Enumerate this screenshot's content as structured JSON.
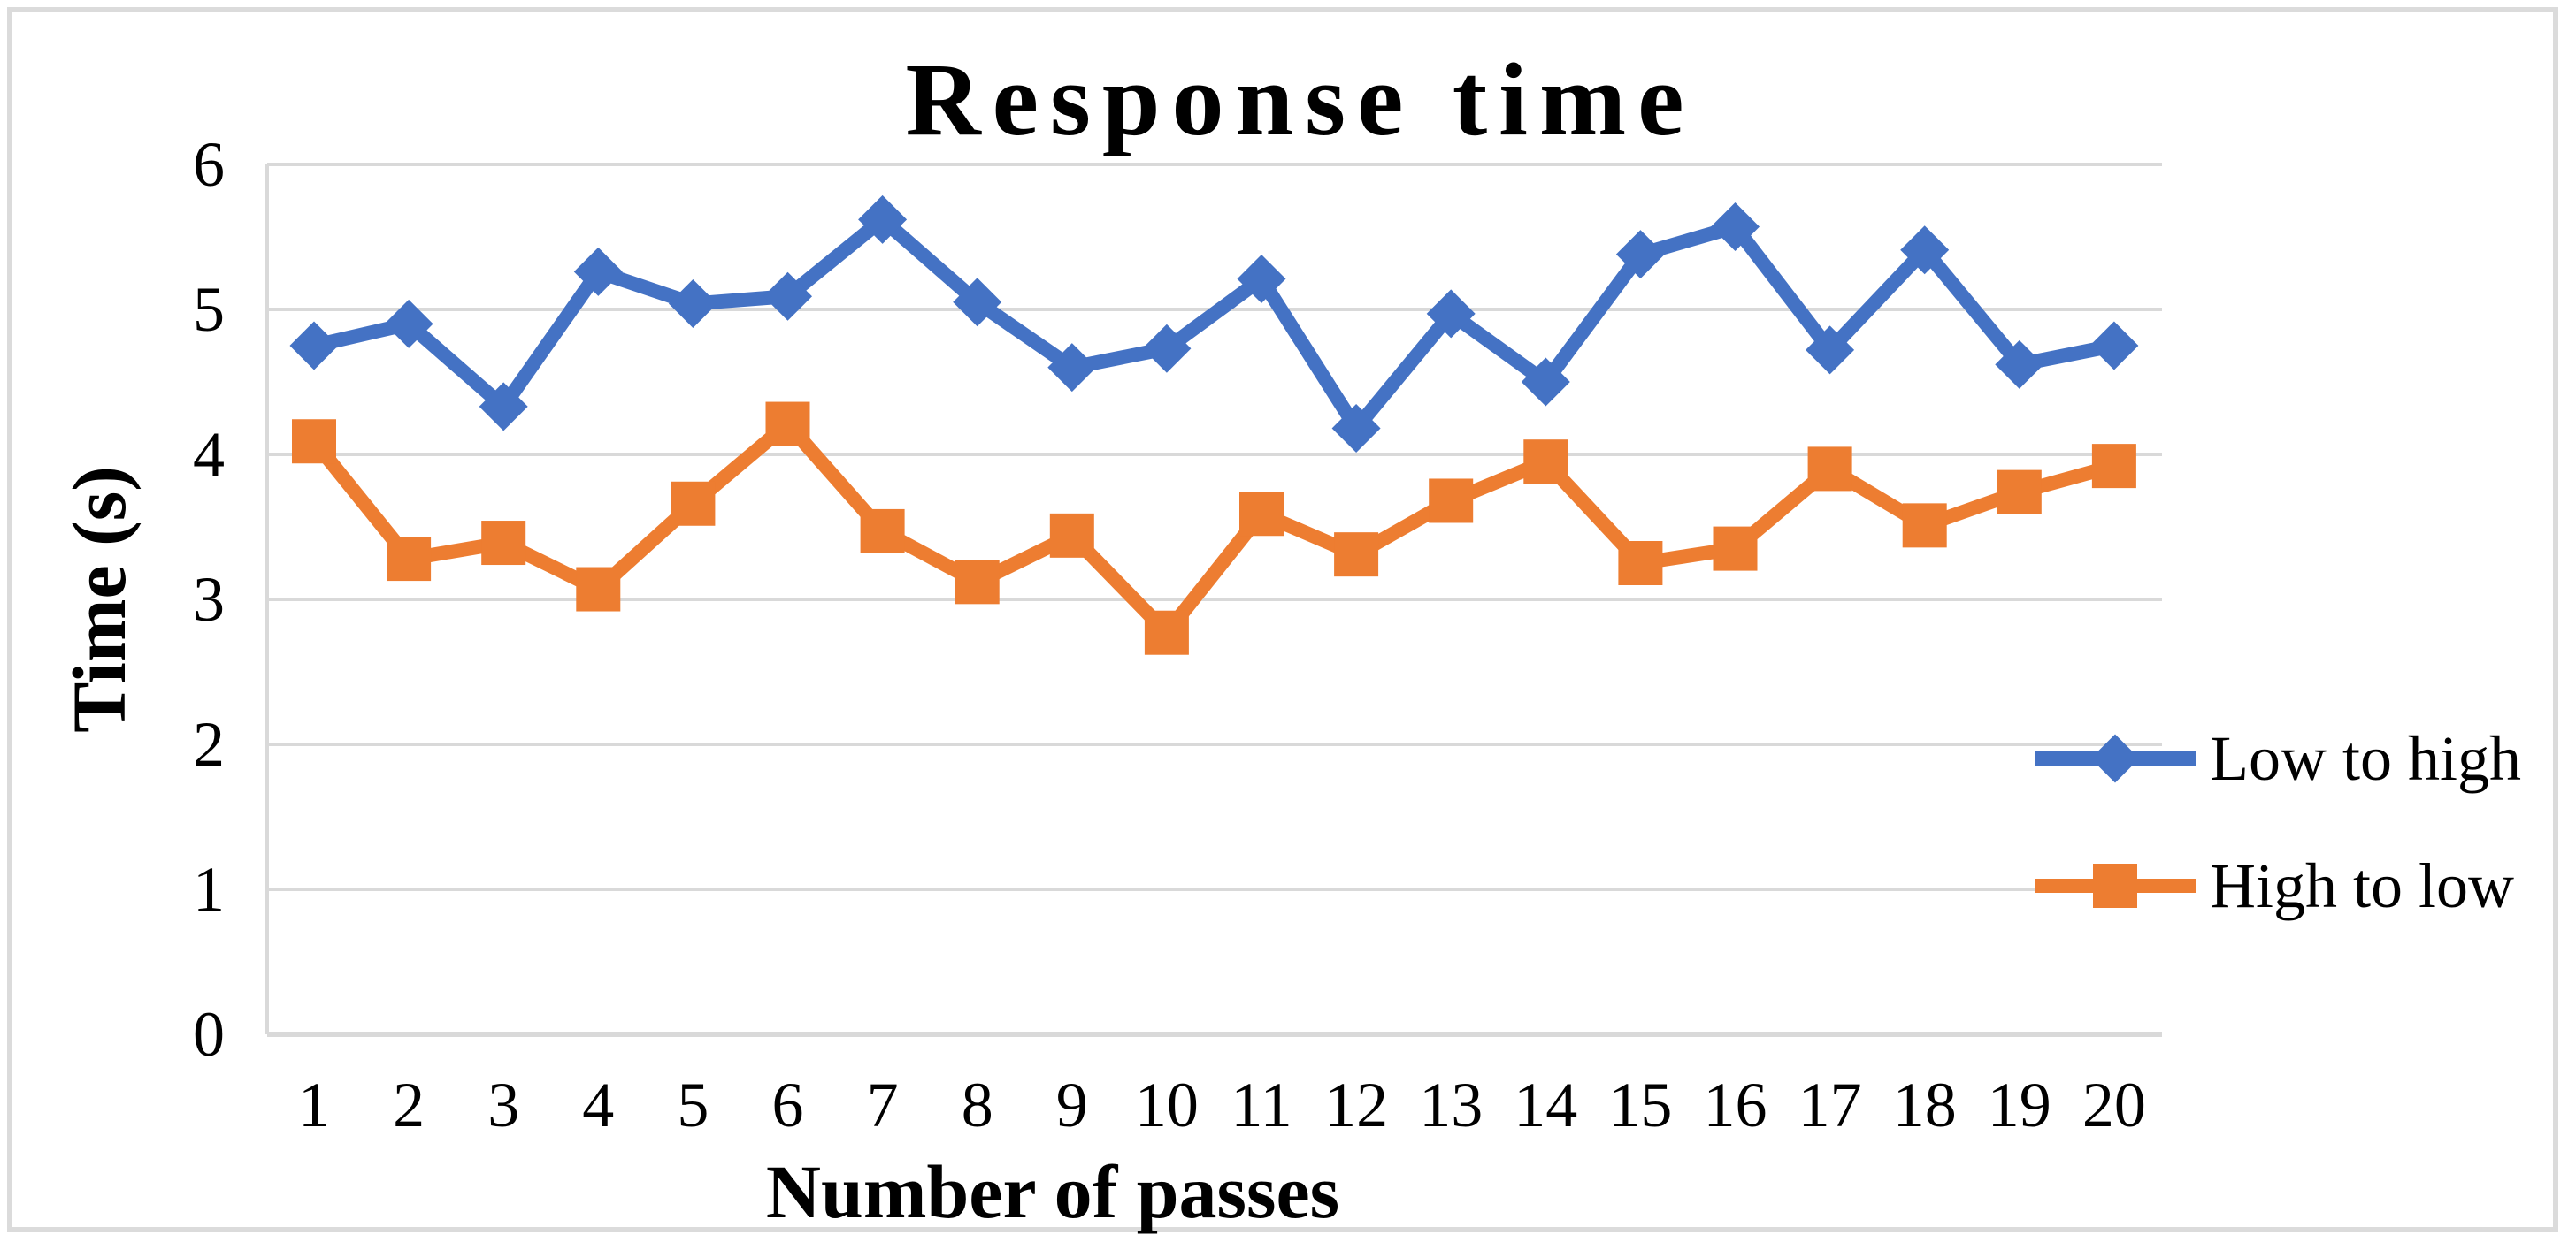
{
  "title": "Response time",
  "axes": {
    "x_label": "Number of passes",
    "y_label": "Time (s)",
    "x_ticks": [
      "1",
      "2",
      "3",
      "4",
      "5",
      "6",
      "7",
      "8",
      "9",
      "10",
      "11",
      "12",
      "13",
      "14",
      "15",
      "16",
      "17",
      "18",
      "19",
      "20"
    ],
    "y_ticks": [
      "0",
      "1",
      "2",
      "3",
      "4",
      "5",
      "6"
    ]
  },
  "legend": {
    "position": "right",
    "items": [
      {
        "label": "Low to high",
        "color": "#4472C4",
        "marker": "diamond"
      },
      {
        "label": "High to low",
        "color": "#ED7D31",
        "marker": "square"
      }
    ]
  },
  "colors": {
    "series_blue": "#4472C4",
    "series_orange": "#ED7D31",
    "gridline": "#D9D9D9",
    "axis_line": "#D9D9D9",
    "figure_border": "#DBDBDB",
    "text": "#000000",
    "background": "#FFFFFF"
  },
  "chart_data": {
    "type": "line",
    "title": "Response time",
    "xlabel": "Number of passes",
    "ylabel": "Time (s)",
    "ylim": [
      0,
      6
    ],
    "y_tick_step": 1,
    "grid": true,
    "legend_position": "right",
    "categories": [
      1,
      2,
      3,
      4,
      5,
      6,
      7,
      8,
      9,
      10,
      11,
      12,
      13,
      14,
      15,
      16,
      17,
      18,
      19,
      20
    ],
    "series": [
      {
        "name": "Low to high",
        "color": "#4472C4",
        "marker": "diamond",
        "values": [
          4.75,
          4.9,
          4.33,
          5.26,
          5.04,
          5.09,
          5.62,
          5.05,
          4.6,
          4.73,
          5.21,
          4.18,
          4.97,
          4.5,
          5.38,
          5.57,
          4.72,
          5.41,
          4.62,
          4.75
        ]
      },
      {
        "name": "High to low",
        "color": "#ED7D31",
        "marker": "square",
        "values": [
          4.09,
          3.28,
          3.39,
          3.07,
          3.66,
          4.21,
          3.47,
          3.12,
          3.44,
          2.77,
          3.59,
          3.31,
          3.68,
          3.95,
          3.25,
          3.35,
          3.9,
          3.51,
          3.74,
          3.92
        ]
      }
    ]
  }
}
